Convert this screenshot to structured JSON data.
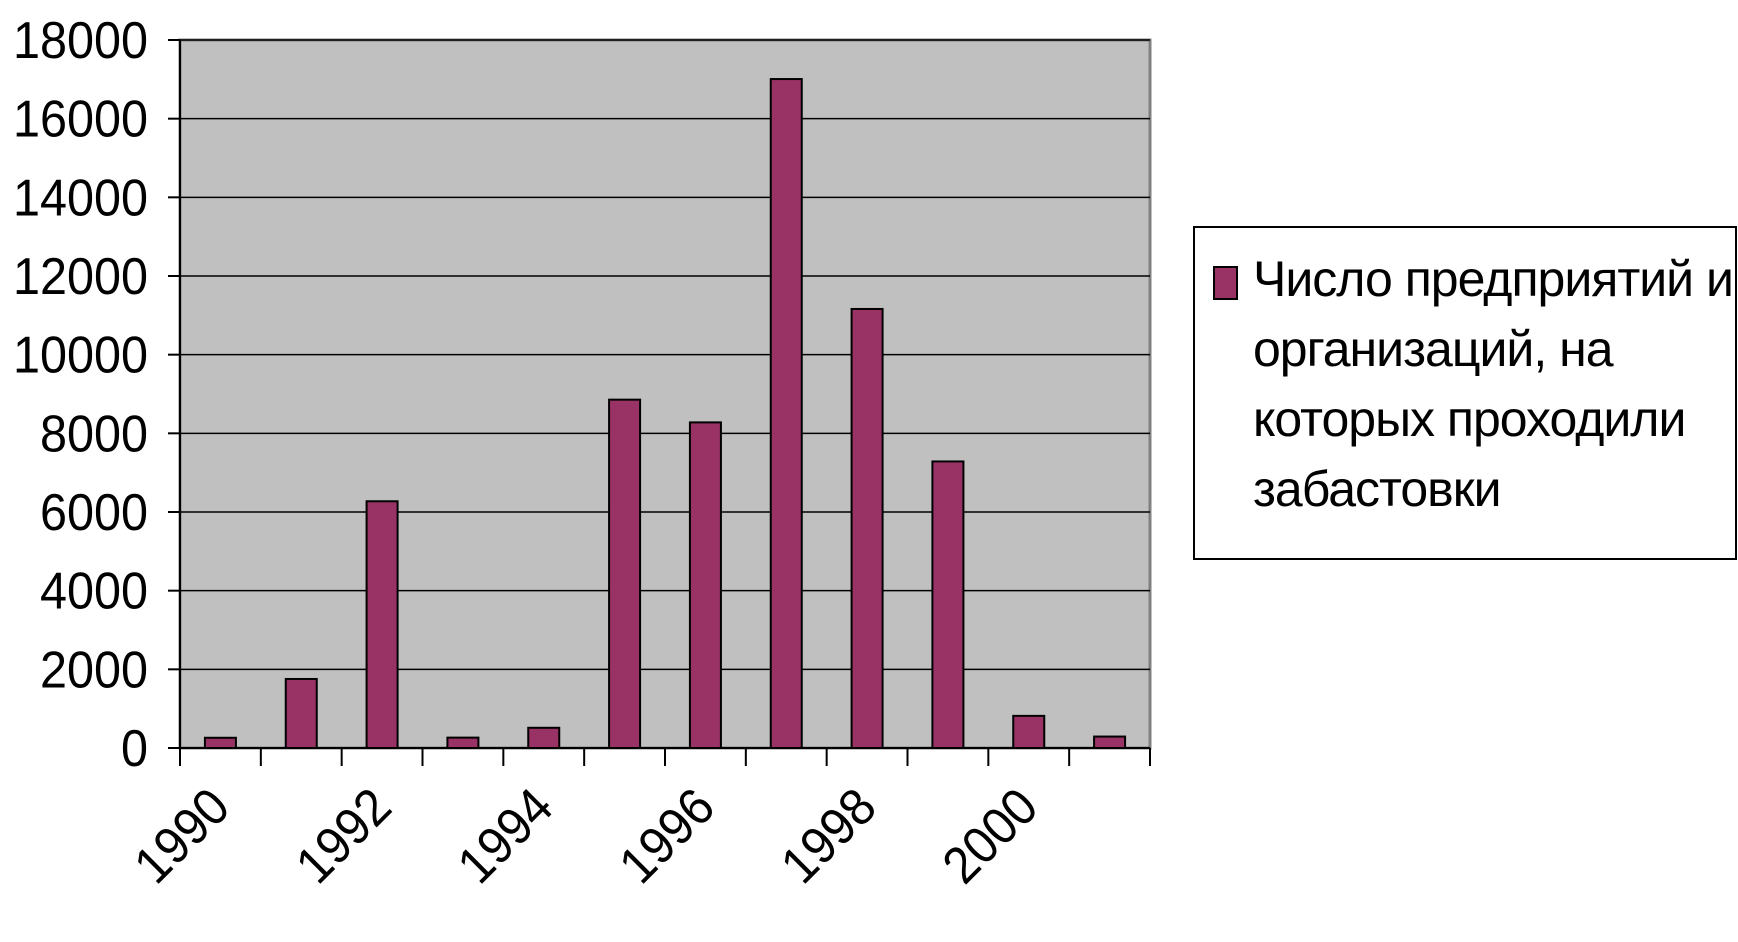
{
  "chart_data": {
    "type": "bar",
    "categories": [
      "1990",
      "1991",
      "1992",
      "1993",
      "1994",
      "1995",
      "1996",
      "1997",
      "1998",
      "1999",
      "2000",
      "2001"
    ],
    "x_tick_labels": [
      "1990",
      "1992",
      "1994",
      "1996",
      "1998",
      "2000"
    ],
    "series": [
      {
        "name": "Число предприятий и организаций, на которых проходили забастовки",
        "values": [
          260,
          1755,
          6273,
          264,
          514,
          8856,
          8278,
          17007,
          11162,
          7285,
          817,
          291
        ]
      }
    ],
    "ylim": [
      0,
      18000
    ],
    "y_ticks": [
      0,
      2000,
      4000,
      6000,
      8000,
      10000,
      12000,
      14000,
      16000,
      18000
    ],
    "title": "",
    "xlabel": "",
    "ylabel": "",
    "grid": true,
    "legend_position": "right",
    "colors": {
      "bar_fill": "#993366",
      "plot_background": "#c0c0c0",
      "axis": "#000000",
      "gridline": "#000000",
      "plot_border": "#808080"
    }
  }
}
